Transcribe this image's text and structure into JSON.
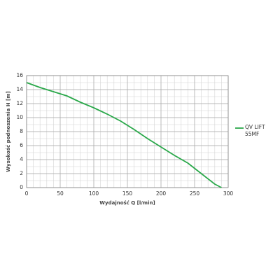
{
  "chart_data": {
    "type": "line",
    "x_label": "Wydajność Q [l/min]",
    "y_label": "Wysokość podnoszenia H [m]",
    "series": [
      {
        "name": "QV LIFT 55MF",
        "color": "#2aa84a",
        "x": [
          0,
          20,
          40,
          60,
          80,
          100,
          120,
          140,
          160,
          180,
          200,
          220,
          240,
          260,
          280,
          290
        ],
        "values": [
          15,
          14.3,
          13.7,
          13.1,
          12.2,
          11.4,
          10.5,
          9.5,
          8.3,
          7.0,
          5.8,
          4.6,
          3.5,
          2.0,
          0.5,
          0
        ]
      }
    ],
    "xlim": [
      0,
      300
    ],
    "xticks": [
      0,
      50,
      100,
      150,
      200,
      250,
      300
    ],
    "ylim": [
      0,
      16
    ],
    "yticks": [
      0,
      2,
      4,
      6,
      8,
      10,
      12,
      14,
      16
    ],
    "grid": true,
    "minor_grid": true,
    "legend": "right"
  }
}
